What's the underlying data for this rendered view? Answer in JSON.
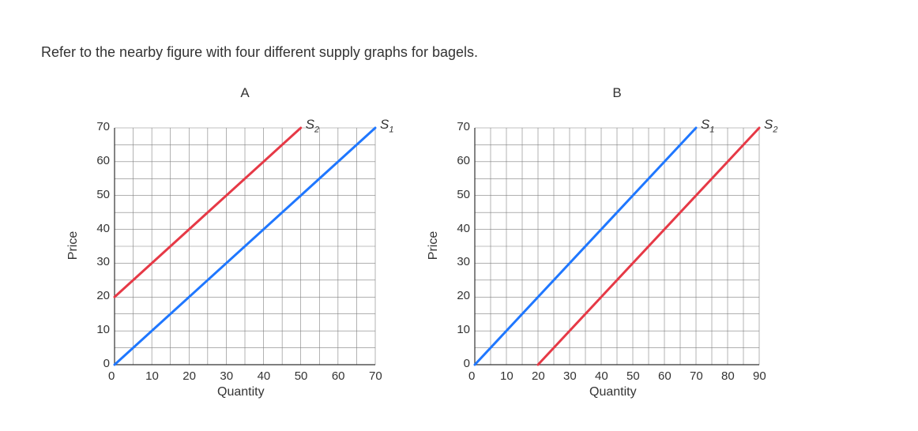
{
  "intro_text": "Refer to the nearby figure with four different supply graphs for bagels.",
  "color_s1": "#1f77ff",
  "color_s2": "#e63946",
  "grid_color": "#808080",
  "text_color": "#333333",
  "background_color": "#ffffff",
  "line_width": 3,
  "chart_a": {
    "type": "line",
    "title": "A",
    "xlabel": "Quantity",
    "ylabel": "Price",
    "xlim": [
      0,
      70
    ],
    "ylim": [
      0,
      70
    ],
    "xtick_step_label": 10,
    "ytick_step_label": 10,
    "minor_grid_step": 5,
    "xticks": [
      0,
      10,
      20,
      30,
      40,
      50,
      60,
      70
    ],
    "yticks": [
      0,
      10,
      20,
      30,
      40,
      50,
      60,
      70
    ],
    "s1": {
      "label": "S₁",
      "start": [
        0,
        0
      ],
      "end": [
        70,
        70
      ],
      "color": "#1f77ff"
    },
    "s2": {
      "label": "S₂",
      "start": [
        0,
        20
      ],
      "end": [
        50,
        70
      ],
      "color": "#e63946"
    },
    "title_fontsize": 17,
    "label_fontsize": 16,
    "tick_fontsize": 15
  },
  "chart_b": {
    "type": "line",
    "title": "B",
    "xlabel": "Quantity",
    "ylabel": "Price",
    "xlim": [
      0,
      90
    ],
    "ylim": [
      0,
      70
    ],
    "xtick_step_label": 10,
    "ytick_step_label": 10,
    "minor_grid_step": 5,
    "xticks": [
      0,
      10,
      20,
      30,
      40,
      50,
      60,
      70,
      80,
      90
    ],
    "yticks": [
      0,
      10,
      20,
      30,
      40,
      50,
      60,
      70
    ],
    "s1": {
      "label": "S₁",
      "start": [
        0,
        0
      ],
      "end": [
        70,
        70
      ],
      "color": "#1f77ff"
    },
    "s2": {
      "label": "S₂",
      "start": [
        20,
        0
      ],
      "end": [
        90,
        70
      ],
      "color": "#e63946"
    },
    "title_fontsize": 17,
    "label_fontsize": 16,
    "tick_fontsize": 15
  }
}
